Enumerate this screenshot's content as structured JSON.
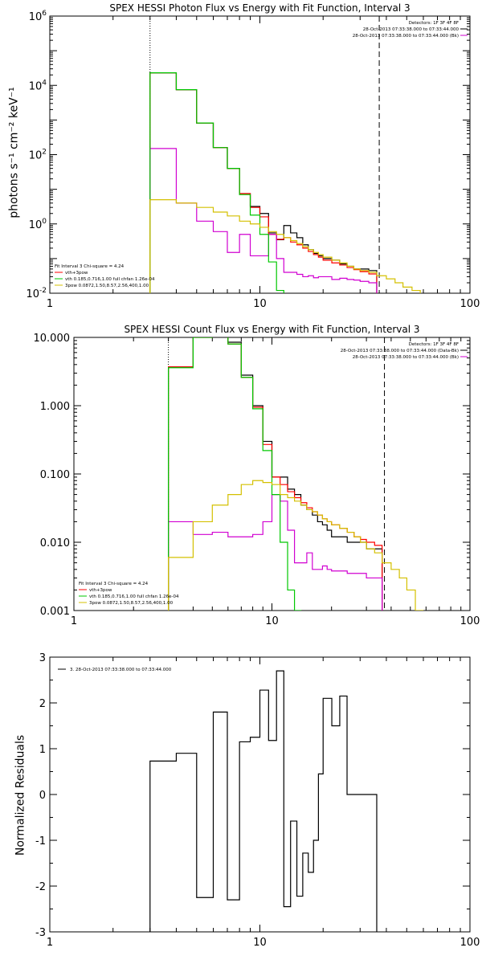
{
  "chart_data": [
    {
      "type": "line",
      "title": "SPEX HESSI Photon Flux vs Energy with Fit Function, Interval 3",
      "ylabel": "photons s⁻¹ cm⁻² keV⁻¹",
      "xlabel": "",
      "xscale": "log",
      "yscale": "log",
      "xlim": [
        1,
        100
      ],
      "ylim": [
        0.01,
        1000000
      ],
      "xticks": [
        "1",
        "10",
        "100"
      ],
      "yticks": [
        {
          "base": "10",
          "exp": "-2",
          "value": 0.01
        },
        {
          "base": "10",
          "exp": "0",
          "value": 1
        },
        {
          "base": "10",
          "exp": "2",
          "value": 100
        },
        {
          "base": "10",
          "exp": "4",
          "value": 10000
        },
        {
          "base": "10",
          "exp": "6",
          "value": 1000000
        }
      ],
      "vlines": [
        {
          "x": 3,
          "style": "dotted"
        },
        {
          "x": 37,
          "style": "dashed"
        }
      ],
      "legend_top": {
        "header": "Detectors: 1F 3F 4F 8F",
        "lines": [
          {
            "text": "28-Oct-2013 07:33:38.000 to 07:33:44.000",
            "color": "#000000"
          },
          {
            "text": "28-Oct-2013 07:33:38.000 to 07:33:44.000 (Bk)",
            "color": "#d100d1"
          }
        ]
      },
      "legend_bottom": {
        "header": "Fit Interval 3   Chi-square = 4.24",
        "lines": [
          {
            "text": "vth+3pow",
            "color": "#ff0000"
          },
          {
            "text": "vth 0.185,0.716,1.00   full chfan 1.26e-04",
            "color": "#00c800"
          },
          {
            "text": "3pow 0.0872,1.50,8.57,2.56,400,1.00",
            "color": "#d4c000"
          }
        ]
      },
      "edges": [
        3,
        4,
        5,
        6,
        7,
        8,
        9,
        10,
        11,
        12,
        13,
        14,
        15,
        16,
        17,
        18,
        19,
        20,
        22,
        24,
        26,
        28,
        30,
        33,
        36,
        40,
        44,
        48,
        53,
        58
      ],
      "series": [
        {
          "color": "#000000",
          "stop": 24,
          "values": [
            23000,
            7500,
            820,
            160,
            40,
            7.5,
            3.2,
            2.0,
            0.55,
            0.35,
            0.9,
            0.55,
            0.4,
            0.25,
            0.18,
            0.14,
            0.12,
            0.1,
            0.09,
            0.07,
            0.06,
            0.05,
            0.05,
            0.045
          ]
        },
        {
          "color": "#ff0000",
          "stop": 24,
          "values": [
            23000,
            7500,
            820,
            160,
            40,
            7.5,
            3.0,
            1.6,
            0.5,
            0.36,
            0.4,
            0.3,
            0.25,
            0.2,
            0.16,
            0.13,
            0.11,
            0.09,
            0.075,
            0.065,
            0.055,
            0.048,
            0.042,
            0.036
          ]
        },
        {
          "color": "#d100d1",
          "stop": 24,
          "values": [
            150,
            4.0,
            1.2,
            0.6,
            0.15,
            0.5,
            0.12,
            0.12,
            0.5,
            0.1,
            0.04,
            0.04,
            0.035,
            0.03,
            0.032,
            0.028,
            0.03,
            0.03,
            0.025,
            0.027,
            0.025,
            0.024,
            0.022,
            0.02
          ]
        },
        {
          "color": "#00c800",
          "stop": 10,
          "values": [
            23000,
            7500,
            820,
            160,
            40,
            7.0,
            1.8,
            0.5,
            0.08,
            0.012
          ]
        },
        {
          "color": "#d4c000",
          "stop": 29,
          "values": [
            5.0,
            4.0,
            3.0,
            2.2,
            1.7,
            1.2,
            1.0,
            0.8,
            0.6,
            0.5,
            0.4,
            0.33,
            0.27,
            0.22,
            0.18,
            0.15,
            0.13,
            0.11,
            0.09,
            0.075,
            0.06,
            0.05,
            0.045,
            0.04,
            0.032,
            0.026,
            0.02,
            0.015,
            0.012
          ]
        }
      ]
    },
    {
      "type": "line",
      "title": "SPEX HESSI Count Flux vs Energy with Fit Function, Interval 3",
      "ylabel": "",
      "xlabel": "",
      "xscale": "log",
      "yscale": "log",
      "xlim": [
        1,
        100
      ],
      "ylim": [
        0.001,
        10.0
      ],
      "xticks": [
        "1",
        "10",
        "100"
      ],
      "yticks": [
        {
          "label": "0.001",
          "value": 0.001
        },
        {
          "label": "0.010",
          "value": 0.01
        },
        {
          "label": "0.100",
          "value": 0.1
        },
        {
          "label": "1.000",
          "value": 1.0
        },
        {
          "label": "10.000",
          "value": 10.0
        }
      ],
      "vlines": [
        {
          "x": 3,
          "style": "dotted"
        },
        {
          "x": 37,
          "style": "dashed"
        }
      ],
      "legend_top": {
        "header": "Detectors: 1F 3F 4F 8F",
        "lines": [
          {
            "text": "28-Oct-2013 07:33:38.000 to 07:33:44.000 (Data-Bk)",
            "color": "#000000"
          },
          {
            "text": "28-Oct-2013 07:33:38.000 to 07:33:44.000 (Bk)",
            "color": "#d100d1"
          }
        ]
      },
      "legend_bottom": {
        "header": "Fit Interval 3   Chi-square = 4.24",
        "lines": [
          {
            "text": "vth+3pow",
            "color": "#ff0000"
          },
          {
            "text": "vth 0.185,0.716,1.00   full chfan 1.26e-04",
            "color": "#00c800"
          },
          {
            "text": "3pow 0.0872,1.50,8.57,2.56,400,1.00",
            "color": "#d4c000"
          }
        ]
      },
      "edges": [
        3,
        4,
        5,
        6,
        7,
        8,
        9,
        10,
        11,
        12,
        13,
        14,
        15,
        16,
        17,
        18,
        19,
        20,
        22,
        24,
        26,
        28,
        30,
        33,
        36,
        40,
        44,
        48,
        53,
        58
      ],
      "series": [
        {
          "color": "#000000",
          "stop": 24,
          "values": [
            3.7,
            10.5,
            11.0,
            8.5,
            2.8,
            1.0,
            0.3,
            0.09,
            0.09,
            0.06,
            0.05,
            0.035,
            0.03,
            0.025,
            0.02,
            0.018,
            0.015,
            0.012,
            0.012,
            0.01,
            0.01,
            0.01,
            0.008,
            0.008
          ]
        },
        {
          "color": "#ff0000",
          "stop": 24,
          "values": [
            3.7,
            10.0,
            10.5,
            8.0,
            2.6,
            0.95,
            0.27,
            0.09,
            0.07,
            0.055,
            0.045,
            0.038,
            0.032,
            0.028,
            0.025,
            0.022,
            0.02,
            0.018,
            0.016,
            0.014,
            0.012,
            0.011,
            0.01,
            0.009
          ]
        },
        {
          "color": "#d100d1",
          "stop": 24,
          "values": [
            0.02,
            0.013,
            0.014,
            0.012,
            0.012,
            0.013,
            0.02,
            0.05,
            0.04,
            0.015,
            0.005,
            0.005,
            0.007,
            0.004,
            0.004,
            0.0045,
            0.004,
            0.0038,
            0.0038,
            0.0035,
            0.0035,
            0.0035,
            0.003,
            0.003
          ]
        },
        {
          "color": "#00c800",
          "stop": 11,
          "values": [
            3.6,
            10.0,
            10.5,
            8.0,
            2.6,
            0.9,
            0.22,
            0.05,
            0.01,
            0.002,
            0.001
          ]
        },
        {
          "color": "#d4c000",
          "stop": 29,
          "values": [
            0.006,
            0.02,
            0.035,
            0.05,
            0.07,
            0.08,
            0.075,
            0.07,
            0.05,
            0.045,
            0.04,
            0.035,
            0.03,
            0.028,
            0.025,
            0.022,
            0.02,
            0.018,
            0.016,
            0.014,
            0.012,
            0.01,
            0.008,
            0.007,
            0.005,
            0.004,
            0.003,
            0.002,
            0.001
          ]
        }
      ]
    },
    {
      "type": "line",
      "title": "",
      "ylabel": "Normalized Residuals",
      "xlabel": "",
      "xscale": "log",
      "yscale": "linear",
      "xlim": [
        1,
        100
      ],
      "ylim": [
        -3,
        3
      ],
      "xticks": [
        "1",
        "10",
        "100"
      ],
      "yticks": [
        {
          "label": "-3",
          "value": -3
        },
        {
          "label": "-2",
          "value": -2
        },
        {
          "label": "-1",
          "value": -1
        },
        {
          "label": "0",
          "value": 0
        },
        {
          "label": "1",
          "value": 1
        },
        {
          "label": "2",
          "value": 2
        },
        {
          "label": "3",
          "value": 3
        }
      ],
      "legend_top": {
        "header": "",
        "lines": [
          {
            "text": "3. 28-Oct-2013 07:33:38.000 to 07:33:44.000",
            "color": "#000000"
          }
        ]
      },
      "edges": [
        3,
        4,
        5,
        6,
        7,
        8,
        9,
        10,
        11,
        12,
        13,
        14,
        15,
        16,
        17,
        18,
        19,
        20,
        22,
        24,
        26,
        28,
        30,
        33,
        36
      ],
      "series": [
        {
          "color": "#000000",
          "stop": 24,
          "drop_edges": true,
          "values": [
            0.73,
            0.9,
            -2.25,
            1.8,
            -2.3,
            1.15,
            1.25,
            2.28,
            1.18,
            2.7,
            -2.45,
            -0.58,
            -2.22,
            -1.28,
            -1.7,
            -1.0,
            0.45,
            2.1,
            1.5,
            2.15,
            0.0,
            0.0,
            0.0,
            0.0
          ]
        }
      ]
    }
  ]
}
